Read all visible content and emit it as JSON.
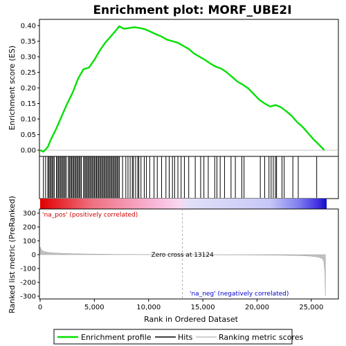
{
  "chart_data": {
    "type": "line",
    "title": "Enrichment plot: MORF_UBE2I",
    "xlabel": "Rank in Ordered Dataset",
    "ylabel_top": "Enrichment score (ES)",
    "ylabel_bottom": "Ranked list metric (PreRanked)",
    "x_range": [
      0,
      27500
    ],
    "es_ylim": [
      -0.02,
      0.42
    ],
    "metric_ylim": [
      -320,
      330
    ],
    "x_ticks": [
      0,
      5000,
      10000,
      15000,
      20000,
      25000
    ],
    "x_tick_labels": [
      "0",
      "5,000",
      "10,000",
      "15,000",
      "20,000",
      "25,000"
    ],
    "es_ticks": [
      0.0,
      0.05,
      0.1,
      0.15,
      0.2,
      0.25,
      0.3,
      0.35,
      0.4
    ],
    "es_tick_labels": [
      "0.00",
      "0.05",
      "0.10",
      "0.15",
      "0.20",
      "0.25",
      "0.30",
      "0.35",
      "0.40"
    ],
    "metric_ticks": [
      300,
      200,
      100,
      0,
      -100,
      -200,
      -300
    ],
    "metric_tick_labels": [
      "300",
      "200",
      "100",
      "0",
      "-100",
      "-200",
      "-300"
    ],
    "n_genes": 26300,
    "zero_cross": 13124,
    "zero_cross_label": "Zero cross at 13124",
    "pos_label": "'na_pos' (positively correlated)",
    "neg_label": "'na_neg' (negatively correlated)",
    "enrichment_profile": {
      "x": [
        0,
        300,
        700,
        1000,
        1500,
        2000,
        2500,
        3000,
        3500,
        4000,
        4500,
        5000,
        5500,
        6000,
        6500,
        7000,
        7300,
        7700,
        8200,
        8700,
        9200,
        9700,
        10200,
        10700,
        11200,
        11700,
        12200,
        12700,
        13200,
        13700,
        14200,
        14700,
        15200,
        15700,
        16200,
        16700,
        17200,
        17700,
        18200,
        18700,
        19200,
        19700,
        20200,
        20700,
        21200,
        21700,
        22200,
        22700,
        23200,
        23700,
        24200,
        24700,
        25200,
        25700,
        26200
      ],
      "y": [
        0.0,
        -0.005,
        0.01,
        0.035,
        0.07,
        0.11,
        0.15,
        0.185,
        0.23,
        0.26,
        0.265,
        0.29,
        0.32,
        0.345,
        0.365,
        0.385,
        0.398,
        0.39,
        0.392,
        0.395,
        0.392,
        0.388,
        0.38,
        0.372,
        0.365,
        0.355,
        0.35,
        0.345,
        0.335,
        0.325,
        0.31,
        0.3,
        0.29,
        0.278,
        0.268,
        0.262,
        0.25,
        0.235,
        0.22,
        0.21,
        0.198,
        0.18,
        0.162,
        0.15,
        0.14,
        0.145,
        0.138,
        0.125,
        0.11,
        0.09,
        0.075,
        0.055,
        0.035,
        0.018,
        0.0
      ]
    },
    "metric_profile": {
      "x": [
        0,
        100,
        300,
        600,
        1000,
        2000,
        4000,
        7000,
        10000,
        13124,
        16000,
        19000,
        22000,
        24000,
        25000,
        25600,
        26000,
        26150,
        26250,
        26300
      ],
      "y": [
        55,
        35,
        25,
        18,
        14,
        9,
        5,
        2,
        0.8,
        0,
        -1,
        -2,
        -4,
        -7,
        -11,
        -17,
        -28,
        -45,
        -120,
        -300
      ]
    },
    "hits": [
      300,
      500,
      700,
      800,
      900,
      1000,
      1100,
      1200,
      1300,
      1500,
      1600,
      1700,
      1800,
      1900,
      2000,
      2100,
      2200,
      2300,
      2400,
      2600,
      2700,
      2800,
      2900,
      3000,
      3100,
      3200,
      3300,
      3400,
      3500,
      3600,
      3700,
      3800,
      4000,
      4100,
      4200,
      4300,
      4400,
      4500,
      4600,
      4700,
      4800,
      4900,
      5000,
      5100,
      5200,
      5300,
      5400,
      5500,
      5600,
      5700,
      5800,
      5900,
      6000,
      6100,
      6200,
      6300,
      6400,
      6500,
      6600,
      6700,
      6800,
      6900,
      7000,
      7100,
      7200,
      7300,
      7600,
      7900,
      8100,
      8300,
      8500,
      8600,
      8800,
      9000,
      9100,
      9300,
      9600,
      9800,
      10100,
      10500,
      10800,
      11200,
      11600,
      11900,
      12200,
      12400,
      12700,
      13000,
      13300,
      13700,
      14300,
      14800,
      15100,
      15500,
      16100,
      16300,
      16600,
      17000,
      17600,
      18000,
      18600,
      18800,
      20300,
      20700,
      21100,
      21300,
      21500,
      21700,
      21800,
      22300,
      22500,
      23300,
      23800,
      25500
    ],
    "legend": [
      {
        "name": "Enrichment profile",
        "color": "#00e000"
      },
      {
        "name": "Hits",
        "color": "#000000"
      },
      {
        "name": "Ranking metric scores",
        "color": "#c0c0c0"
      }
    ],
    "colors": {
      "es_line": "#00e000",
      "hit": "#000000",
      "metric_fill": "#c0c0c0",
      "pos_text": "#cc0000",
      "neg_text": "#0000cc"
    },
    "grid": false,
    "legend_position": "bottom"
  }
}
